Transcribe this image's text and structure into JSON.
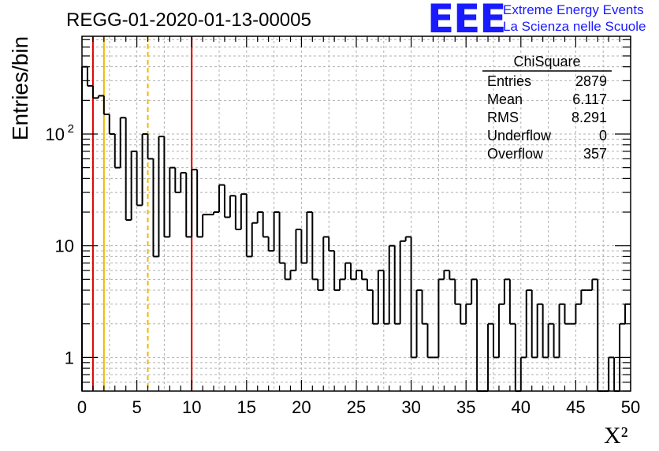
{
  "title": "REGG-01-2020-01-13-00005",
  "logo": {
    "mark": "EEE",
    "line1": "Extreme Energy Events",
    "line2": "La Scienza nelle Scuole",
    "color": "#1a1aff"
  },
  "stats": {
    "title": "ChiSquare",
    "rows": [
      {
        "label": "Entries",
        "value": "2879"
      },
      {
        "label": "Mean",
        "value": "6.117"
      },
      {
        "label": "RMS",
        "value": "8.291"
      },
      {
        "label": "Underflow",
        "value": "0"
      },
      {
        "label": "Overflow",
        "value": "357"
      }
    ]
  },
  "chart_data": {
    "type": "histogram",
    "title": "REGG-01-2020-01-13-00005",
    "xlabel": "X²",
    "ylabel": "Entries/bin",
    "xlim": [
      0,
      50
    ],
    "ylim": [
      0.5,
      750
    ],
    "yscale": "log",
    "grid": true,
    "bin_width": 0.5,
    "x_ticks": [
      "0",
      "5",
      "10",
      "15",
      "20",
      "25",
      "30",
      "35",
      "40",
      "45",
      "50"
    ],
    "y_ticks": [
      {
        "value": 1,
        "label": "1"
      },
      {
        "value": 10,
        "label": "10"
      },
      {
        "value": 100,
        "label": "10",
        "exponent": "2"
      }
    ],
    "values": [
      400,
      270,
      210,
      220,
      150,
      100,
      50,
      140,
      17,
      70,
      23,
      100,
      60,
      8,
      95,
      12,
      50,
      30,
      45,
      12,
      48,
      12,
      19,
      19,
      20,
      35,
      18,
      28,
      14,
      29,
      8,
      16,
      20,
      12,
      9,
      20,
      7,
      5,
      6,
      14,
      7,
      20,
      5,
      4,
      12,
      9,
      4,
      5,
      7,
      5,
      6,
      5,
      4,
      2,
      6,
      2,
      10,
      2,
      11,
      12,
      1,
      4,
      2,
      1,
      1,
      5,
      6,
      5,
      3,
      2,
      3,
      5,
      0.4,
      0.4,
      2,
      1,
      3,
      5,
      2,
      0.4,
      1,
      4,
      1,
      3,
      1,
      2,
      1,
      3,
      2,
      2,
      3,
      4,
      4,
      5,
      0.4,
      0.4,
      1,
      0.4,
      2,
      3
    ],
    "vertical_lines": [
      {
        "x": 1,
        "color": "#e00000",
        "style": "solid"
      },
      {
        "x": 2,
        "color": "#f0b800",
        "style": "solid"
      },
      {
        "x": 6,
        "color": "#f0b800",
        "style": "dashed"
      },
      {
        "x": 10,
        "color": "#e00000",
        "style": "solid"
      }
    ],
    "line_color": "#000000"
  }
}
